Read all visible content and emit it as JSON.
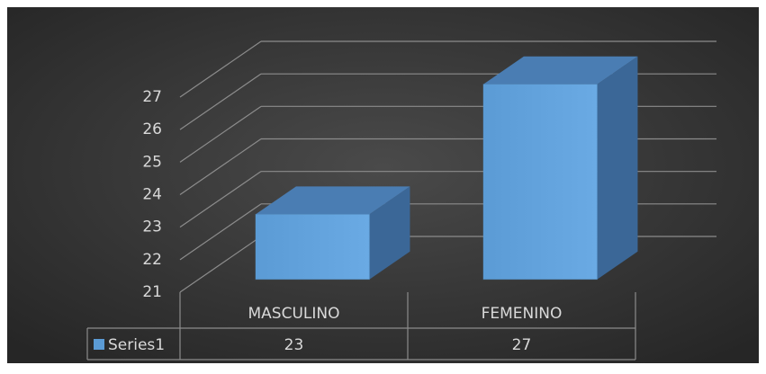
{
  "chart_data": {
    "type": "bar3d",
    "categories": [
      "MASCULINO",
      "FEMENINO"
    ],
    "series": [
      {
        "name": "Series1",
        "color": "#5b9bd5",
        "values": [
          23,
          27
        ]
      }
    ],
    "ylim": [
      21,
      27
    ],
    "yticks": [
      21,
      22,
      23,
      24,
      25,
      26,
      27
    ],
    "grid": true,
    "legend": "table"
  }
}
